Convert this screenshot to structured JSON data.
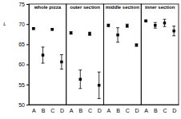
{
  "chart_data": [
    {
      "type": "scatter",
      "title": "whole pizza",
      "ylabel": "L",
      "categories": [
        "A",
        "B",
        "C",
        "D"
      ],
      "values": [
        68.9,
        62.3,
        68.7,
        60.6
      ],
      "errors": [
        0.2,
        2.0,
        0.2,
        1.8
      ],
      "ylim": [
        50,
        75
      ],
      "yticks": [
        50,
        55,
        60,
        65,
        70,
        75
      ],
      "color": "#000000",
      "marker": "square"
    },
    {
      "type": "scatter",
      "title": "outer section",
      "categories": [
        "A",
        "B",
        "C",
        "D"
      ],
      "values": [
        67.8,
        56.3,
        67.6,
        54.8
      ],
      "errors": [
        0.3,
        2.3,
        0.4,
        3.3
      ],
      "ylim": [
        50,
        75
      ],
      "color": "#000000",
      "marker": "square"
    },
    {
      "type": "scatter",
      "title": "middle section",
      "categories": [
        "A",
        "B",
        "C",
        "D"
      ],
      "values": [
        69.7,
        67.3,
        69.6,
        64.8
      ],
      "errors": [
        0.3,
        1.8,
        0.4,
        0.3
      ],
      "ylim": [
        50,
        75
      ],
      "color": "#000000",
      "marker": "square"
    },
    {
      "type": "scatter",
      "title": "inner section",
      "categories": [
        "A",
        "B",
        "C",
        "D"
      ],
      "values": [
        70.8,
        69.7,
        70.3,
        68.3
      ],
      "errors": [
        0.2,
        0.7,
        0.9,
        1.2
      ],
      "ylim": [
        50,
        75
      ],
      "color": "#000000",
      "marker": "square"
    }
  ]
}
